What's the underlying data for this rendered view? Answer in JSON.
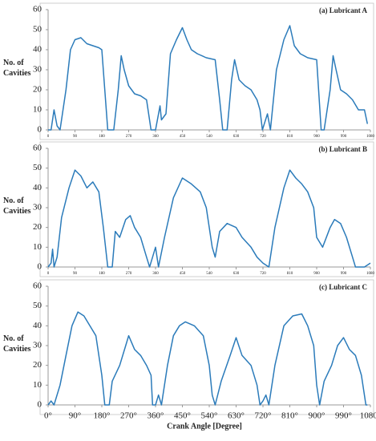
{
  "chart_data": [
    {
      "type": "line",
      "title": "(a) Lubricant A",
      "ylabel": "No. of Cavities",
      "series": [
        {
          "name": "Lubricant A",
          "color": "#2b7bba",
          "x": [
            0,
            10,
            20,
            30,
            40,
            60,
            75,
            90,
            110,
            130,
            150,
            170,
            180,
            190,
            200,
            220,
            235,
            245,
            255,
            270,
            290,
            310,
            330,
            345,
            360,
            375,
            380,
            395,
            410,
            430,
            450,
            465,
            480,
            500,
            530,
            560,
            575,
            585,
            600,
            615,
            625,
            640,
            660,
            680,
            700,
            710,
            718,
            735,
            745,
            765,
            790,
            810,
            825,
            845,
            870,
            900,
            915,
            925,
            945,
            955,
            965,
            980,
            1000,
            1020,
            1040,
            1060,
            1070
          ],
          "values": [
            0,
            0,
            10,
            2,
            0,
            20,
            40,
            45,
            46,
            43,
            42,
            41,
            40,
            20,
            0,
            0,
            20,
            37,
            30,
            22,
            18,
            17,
            15,
            0,
            0,
            12,
            5,
            8,
            38,
            45,
            51,
            45,
            40,
            38,
            36,
            35,
            15,
            0,
            0,
            25,
            35,
            25,
            22,
            20,
            15,
            10,
            0,
            8,
            0,
            30,
            45,
            52,
            42,
            38,
            36,
            35,
            0,
            0,
            20,
            37,
            30,
            20,
            18,
            15,
            10,
            10,
            3
          ]
        }
      ],
      "xlim": [
        0,
        1080
      ],
      "ylim": [
        0,
        60
      ],
      "xticks": [
        0,
        90,
        180,
        270,
        360,
        450,
        540,
        630,
        720,
        810,
        900,
        990,
        1080
      ],
      "yticks": [
        0,
        10,
        20,
        30,
        40,
        50,
        60
      ]
    },
    {
      "type": "line",
      "title": "(b) Lubricant B",
      "ylabel": "No. of Cavities",
      "series": [
        {
          "name": "Lubricant B",
          "color": "#2b7bba",
          "x": [
            0,
            10,
            15,
            20,
            30,
            45,
            70,
            90,
            110,
            130,
            150,
            170,
            185,
            200,
            215,
            225,
            240,
            260,
            275,
            290,
            310,
            330,
            340,
            350,
            360,
            370,
            390,
            420,
            450,
            480,
            510,
            530,
            550,
            560,
            575,
            600,
            630,
            650,
            680,
            700,
            720,
            740,
            760,
            790,
            810,
            830,
            850,
            870,
            890,
            900,
            920,
            945,
            960,
            980,
            1000,
            1020,
            1030,
            1050,
            1060,
            1080
          ],
          "values": [
            0,
            2,
            9,
            0,
            5,
            25,
            40,
            49,
            46,
            40,
            43,
            38,
            20,
            0,
            0,
            18,
            15,
            24,
            26,
            20,
            15,
            5,
            0,
            5,
            10,
            0,
            15,
            35,
            45,
            42,
            38,
            30,
            10,
            5,
            18,
            22,
            20,
            15,
            10,
            5,
            2,
            0,
            20,
            40,
            49,
            45,
            42,
            38,
            30,
            15,
            10,
            20,
            24,
            22,
            15,
            5,
            0,
            0,
            0,
            2
          ]
        }
      ],
      "xlim": [
        0,
        1080
      ],
      "ylim": [
        0,
        60
      ],
      "xticks": [
        0,
        90,
        180,
        270,
        360,
        450,
        540,
        630,
        720,
        810,
        900,
        990,
        1080
      ],
      "yticks": [
        0,
        10,
        20,
        30,
        40,
        50,
        60
      ]
    },
    {
      "type": "line",
      "title": "(c) Lubricant C",
      "ylabel": "No. of Cavities",
      "xlabel": "Crank Angle [Degree]",
      "series": [
        {
          "name": "Lubricant C",
          "color": "#2b7bba",
          "x": [
            0,
            10,
            20,
            40,
            60,
            80,
            100,
            120,
            140,
            160,
            180,
            190,
            205,
            215,
            240,
            260,
            270,
            290,
            310,
            330,
            345,
            350,
            360,
            370,
            380,
            400,
            420,
            440,
            460,
            490,
            520,
            540,
            550,
            560,
            580,
            610,
            630,
            650,
            680,
            700,
            710,
            720,
            730,
            740,
            760,
            790,
            820,
            850,
            870,
            890,
            900,
            910,
            925,
            950,
            970,
            990,
            1010,
            1030,
            1050,
            1065,
            1070
          ],
          "values": [
            0,
            2,
            0,
            10,
            25,
            40,
            47,
            45,
            40,
            35,
            15,
            0,
            0,
            12,
            20,
            30,
            35,
            28,
            25,
            20,
            15,
            0,
            0,
            5,
            0,
            20,
            35,
            40,
            42,
            40,
            35,
            20,
            5,
            0,
            12,
            25,
            34,
            25,
            20,
            10,
            0,
            2,
            5,
            0,
            20,
            40,
            45,
            46,
            40,
            30,
            10,
            0,
            12,
            20,
            30,
            34,
            28,
            25,
            15,
            0,
            0
          ]
        }
      ],
      "xlim": [
        0,
        1080
      ],
      "ylim": [
        0,
        60
      ],
      "xticks": [
        {
          "value": 0,
          "label": "0°"
        },
        {
          "value": 90,
          "label": "90°"
        },
        {
          "value": 180,
          "label": "180°"
        },
        {
          "value": 270,
          "label": "270°"
        },
        {
          "value": 360,
          "label": "360°"
        },
        {
          "value": 450,
          "label": "450°"
        },
        {
          "value": 540,
          "label": "540°"
        },
        {
          "value": 630,
          "label": "630°"
        },
        {
          "value": 720,
          "label": "720°"
        },
        {
          "value": 810,
          "label": "810°"
        },
        {
          "value": 900,
          "label": "900°"
        },
        {
          "value": 990,
          "label": "990°"
        },
        {
          "value": 1080,
          "label": "1080°"
        }
      ],
      "yticks": [
        0,
        10,
        20,
        30,
        40,
        50,
        60
      ]
    }
  ]
}
